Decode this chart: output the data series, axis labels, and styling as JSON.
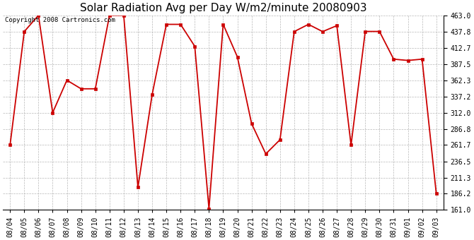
{
  "title": "Solar Radiation Avg per Day W/m2/minute 20080903",
  "copyright": "Copyright 2008 Cartronics.com",
  "x_labels": [
    "08/04",
    "08/05",
    "08/06",
    "08/07",
    "08/08",
    "08/09",
    "08/10",
    "08/11",
    "08/12",
    "08/13",
    "08/14",
    "08/15",
    "08/16",
    "08/17",
    "08/18",
    "08/19",
    "08/20",
    "08/21",
    "08/22",
    "08/23",
    "08/24",
    "08/25",
    "08/26",
    "08/27",
    "08/28",
    "08/29",
    "08/30",
    "08/31",
    "09/01",
    "09/02",
    "09/03"
  ],
  "y_values": [
    261.7,
    437.8,
    463.0,
    312.0,
    362.3,
    349.0,
    349.0,
    463.0,
    463.0,
    196.0,
    340.0,
    449.0,
    449.0,
    415.0,
    163.0,
    449.0,
    398.5,
    295.0,
    248.0,
    270.0,
    437.8,
    449.0,
    437.8,
    447.0,
    261.7,
    438.0,
    438.0,
    395.0,
    393.0,
    395.0,
    186.2
  ],
  "ylim_min": 161.0,
  "ylim_max": 463.0,
  "y_ticks": [
    161.0,
    186.2,
    211.3,
    236.5,
    261.7,
    286.8,
    312.0,
    337.2,
    362.3,
    387.5,
    412.7,
    437.8,
    463.0
  ],
  "line_color": "#cc0000",
  "marker_color": "#cc0000",
  "bg_color": "#ffffff",
  "grid_color": "#b0b0b0",
  "title_fontsize": 11,
  "tick_fontsize": 7,
  "copyright_fontsize": 6.5
}
